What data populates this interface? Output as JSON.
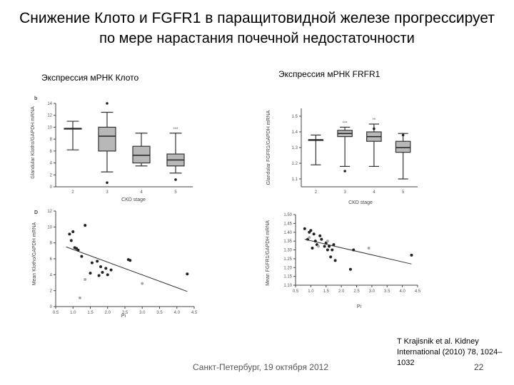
{
  "slide": {
    "title_line1": "Снижение Клото и FGFR1 в паращитовидной железе прогрессирует",
    "title_line2": "по мере нарастания почечной недостаточности",
    "subtitle_left": "Экспрессия мРНК Клото",
    "subtitle_right": "Экспрессия мРНК FRFR1",
    "footer_center": "Санкт-Петербург, 19 октября 2012",
    "citation": "T Krajisnik et al. Kidney International (2010) 78, 1024–1032",
    "page_number": "22"
  },
  "chart_data": [
    {
      "type": "box",
      "panel_letter": "b",
      "ylabel": "Glandular Klotho/GAPDH mRNA",
      "xlabel": "CKD stage",
      "categories": [
        "2",
        "3",
        "4",
        "5"
      ],
      "ylim": [
        0,
        14
      ],
      "yticks": [
        "0",
        "2",
        "4",
        "6",
        "8",
        "10",
        "12",
        "14"
      ],
      "boxes": [
        {
          "min": 6.2,
          "q1": 9.8,
          "median": 9.8,
          "q3": 9.8,
          "max": 11
        },
        {
          "min": 2.5,
          "q1": 6,
          "median": 8.5,
          "q3": 10,
          "max": 12.5
        },
        {
          "min": 3.5,
          "q1": 4,
          "median": 5.3,
          "q3": 6.8,
          "max": 9
        },
        {
          "min": 2.3,
          "q1": 3.5,
          "median": 4.5,
          "q3": 5.5,
          "max": 9
        }
      ],
      "outliers": [
        {
          "category": "3",
          "value": 14
        },
        {
          "category": "3",
          "value": 0.7
        },
        {
          "category": "5",
          "value": 1.2
        }
      ],
      "annotations": [
        {
          "category": "5",
          "text": "***"
        }
      ]
    },
    {
      "type": "box",
      "ylabel": "Glandular FGFR1/GAPDH mRNA",
      "xlabel": "CKD stage",
      "categories": [
        "2",
        "3",
        "4",
        "5"
      ],
      "ylim": [
        1.05,
        1.55
      ],
      "yticks": [
        "1.1",
        "1.2",
        "1.3",
        "1.4",
        "1.5"
      ],
      "boxes": [
        {
          "min": 1.19,
          "q1": 1.35,
          "median": 1.35,
          "q3": 1.35,
          "max": 1.38
        },
        {
          "min": 1.18,
          "q1": 1.37,
          "median": 1.39,
          "q3": 1.41,
          "max": 1.43
        },
        {
          "min": 1.18,
          "q1": 1.34,
          "median": 1.37,
          "q3": 1.4,
          "max": 1.45
        },
        {
          "min": 1.1,
          "q1": 1.27,
          "median": 1.3,
          "q3": 1.34,
          "max": 1.39
        }
      ],
      "outliers": [
        {
          "category": "3",
          "value": 1.15
        },
        {
          "category": "4",
          "value": 1.42
        },
        {
          "category": "5",
          "value": 1.38
        }
      ],
      "annotations": [
        {
          "category": "3",
          "text": "***"
        },
        {
          "category": "4",
          "text": "**"
        }
      ]
    },
    {
      "type": "scatter",
      "panel_letter": "D",
      "ylabel": "Mean Klotho/GAPDH mRNA",
      "xlabel": "Pi",
      "xlim": [
        0.5,
        4.5
      ],
      "ylim": [
        0,
        12
      ],
      "xticks": [
        "0.5",
        "1.0",
        "1.5",
        "2.0",
        "2.5",
        "3.0",
        "3.5",
        "4.0",
        "4.5"
      ],
      "yticks": [
        "0",
        "2",
        "4",
        "6",
        "8",
        "10",
        "12"
      ],
      "points_dark": [
        [
          0.9,
          9.1
        ],
        [
          0.95,
          8.3
        ],
        [
          1.0,
          9.4
        ],
        [
          1.05,
          7.4
        ],
        [
          1.1,
          7.3
        ],
        [
          1.15,
          7.1
        ],
        [
          1.25,
          6.3
        ],
        [
          1.35,
          10.2
        ],
        [
          1.5,
          4.2
        ],
        [
          1.55,
          5.5
        ],
        [
          1.7,
          5.7
        ],
        [
          1.75,
          3.9
        ],
        [
          1.8,
          5.0
        ],
        [
          1.85,
          4.3
        ],
        [
          1.95,
          4.8
        ],
        [
          2.0,
          4.0
        ],
        [
          2.1,
          4.6
        ],
        [
          2.6,
          5.9
        ],
        [
          2.65,
          5.8
        ],
        [
          4.3,
          4.1
        ]
      ],
      "points_light": [
        [
          1.2,
          1.1
        ],
        [
          1.35,
          3.4
        ],
        [
          3.0,
          2.9
        ]
      ],
      "trend_line": [
        [
          0.8,
          7.5
        ],
        [
          4.3,
          1.9
        ]
      ]
    },
    {
      "type": "scatter",
      "ylabel": "Mean FGFR1/GAPDH mRNA",
      "xlabel": "Pi",
      "xlim": [
        0.5,
        4.5
      ],
      "ylim": [
        1.1,
        1.5
      ],
      "xticks": [
        "0.5",
        "1.0",
        "1.5",
        "2.0",
        "2.5",
        "3.0",
        "3.5",
        "4.0",
        "4.5"
      ],
      "yticks": [
        "1.10",
        "1.15",
        "1.20",
        "1.25",
        "1.30",
        "1.35",
        "1.40",
        "1.45",
        "1.50"
      ],
      "points_dark": [
        [
          0.8,
          1.42
        ],
        [
          0.9,
          1.36
        ],
        [
          0.95,
          1.4
        ],
        [
          1.0,
          1.41
        ],
        [
          1.05,
          1.31
        ],
        [
          1.1,
          1.39
        ],
        [
          1.15,
          1.35
        ],
        [
          1.2,
          1.33
        ],
        [
          1.3,
          1.38
        ],
        [
          1.35,
          1.36
        ],
        [
          1.45,
          1.32
        ],
        [
          1.5,
          1.34
        ],
        [
          1.55,
          1.3
        ],
        [
          1.6,
          1.32
        ],
        [
          1.65,
          1.26
        ],
        [
          1.7,
          1.3
        ],
        [
          1.75,
          1.33
        ],
        [
          1.8,
          1.24
        ],
        [
          2.3,
          1.19
        ],
        [
          2.4,
          1.3
        ],
        [
          4.3,
          1.27
        ]
      ],
      "points_light": [
        [
          0.95,
          1.37
        ],
        [
          1.25,
          1.32
        ],
        [
          1.55,
          1.35
        ],
        [
          2.9,
          1.31
        ]
      ],
      "trend_line": [
        [
          0.8,
          1.36
        ],
        [
          4.3,
          1.22
        ]
      ]
    }
  ]
}
